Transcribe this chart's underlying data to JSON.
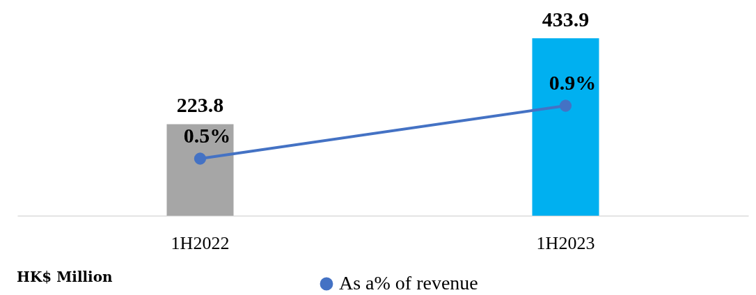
{
  "chart_data": {
    "type": "bar",
    "categories": [
      "1H2022",
      "1H2023"
    ],
    "series": [
      {
        "colors": [
          "#a6a6a6",
          "#00b0f0"
        ],
        "values": [
          223.8,
          433.9
        ],
        "value_labels": [
          "223.8",
          "433.9"
        ]
      },
      {
        "type": "line",
        "name": "As a% of revenue",
        "color": "#4472c4",
        "axis": "y2",
        "values": [
          0.5,
          0.9
        ],
        "value_labels": [
          "0.5%",
          "0.9%"
        ]
      }
    ],
    "tick_labels": "x",
    "grid": false,
    "legend": "bottom",
    "marker": "circle",
    "line_style": "solid",
    "annotations": [
      "HK$ Million"
    ]
  }
}
